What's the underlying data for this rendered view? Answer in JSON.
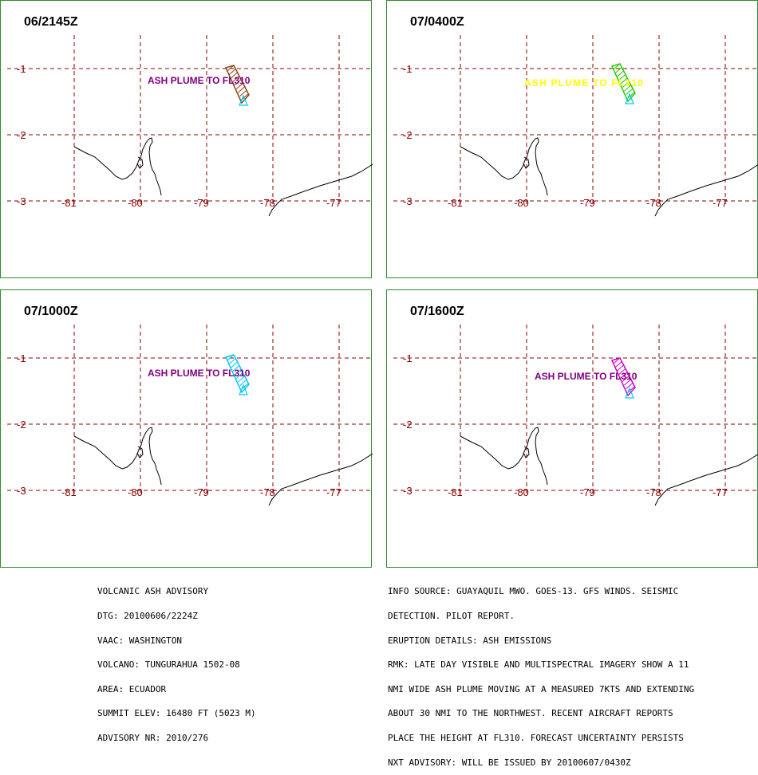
{
  "colors": {
    "grid": "#8b0000",
    "coast": "#000000",
    "panel_border": "#2e8b2e",
    "volcano_marker": "#00c8ff"
  },
  "axis_labels": {
    "lat": [
      "-1",
      "-2",
      "-3"
    ],
    "lon": [
      "-81",
      "-80",
      "-79",
      "-78",
      "-77"
    ]
  },
  "panels": [
    {
      "title": "06/2145Z",
      "label": "ASH PLUME TO FL310",
      "label_color": "#800080",
      "plume_color": "#8b4513"
    },
    {
      "title": "07/0400Z",
      "label": "ASH PLUME TO FL310",
      "label_color": "#ffff00",
      "plume_color": "#22cc00"
    },
    {
      "title": "07/1000Z",
      "label": "ASH PLUME TO FL310",
      "label_color": "#800080",
      "plume_color": "#00c8ff"
    },
    {
      "title": "07/1600Z",
      "label": "ASH PLUME TO FL310",
      "label_color": "#800080",
      "plume_color": "#cc00cc"
    }
  ],
  "advisory_left": [
    "VOLCANIC ASH ADVISORY",
    "DTG: 20100606/2224Z",
    "VAAC: WASHINGTON",
    "VOLCANO: TUNGURAHUA 1502-08",
    "AREA: ECUADOR",
    "SUMMIT ELEV: 16480 FT (5023 M)",
    "ADVISORY NR: 2010/276"
  ],
  "advisory_right": [
    "INFO SOURCE: GUAYAQUIL MWO. GOES-13. GFS WINDS. SEISMIC",
    "DETECTION. PILOT REPORT.",
    "ERUPTION DETAILS: ASH EMISSIONS",
    "RMK: LATE DAY VISIBLE AND MULTISPECTRAL IMAGERY SHOW A 11",
    "NMI WIDE ASH PLUME MOVING AT A MEASURED 7KTS AND EXTENDING",
    "ABOUT 30 NMI TO THE NORTHWEST. RECENT AIRCRAFT REPORTS",
    "PLACE THE HEIGHT AT FL310. FORECAST UNCERTAINTY PERSISTS",
    "NXT ADVISORY: WILL BE ISSUED BY 20100607/0430Z"
  ]
}
